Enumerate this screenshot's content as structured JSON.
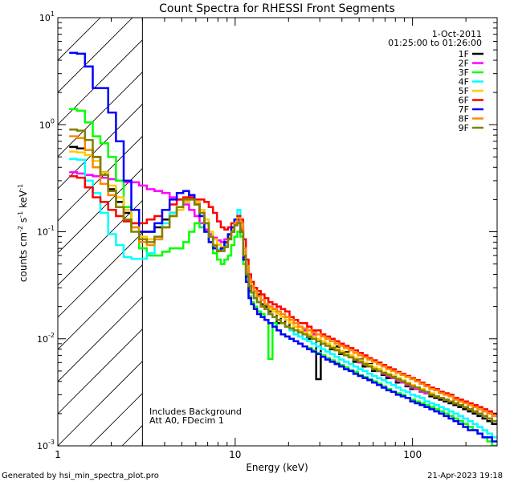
{
  "chart_data": {
    "type": "line",
    "title": "Count Spectra for RHESSI Front Segments",
    "xlabel": "Energy (keV)",
    "ylabel_parts": {
      "base": "counts cm",
      "exp1": "-2",
      "mid": " s",
      "exp2": "-1",
      "tail": " keV",
      "exp3": "-1"
    },
    "xscale": "log",
    "yscale": "log",
    "xlim": [
      1.0,
      300.0
    ],
    "ylim": [
      0.001,
      10.0
    ],
    "x_ticks": [
      {
        "value": 1,
        "label": "1"
      },
      {
        "value": 10,
        "label": "10"
      },
      {
        "value": 100,
        "label": "100"
      }
    ],
    "y_ticks": [
      {
        "value": 0.001,
        "base": "10",
        "exp": "-3"
      },
      {
        "value": 0.01,
        "base": "10",
        "exp": "-2"
      },
      {
        "value": 0.1,
        "base": "10",
        "exp": "-1"
      },
      {
        "value": 1,
        "base": "10",
        "exp": "0"
      },
      {
        "value": 10,
        "base": "10",
        "exp": "1"
      }
    ],
    "shaded_region": {
      "x_from": 1.0,
      "x_to": 3.0,
      "style": "diagonal-hatch"
    },
    "legend_header": [
      "1-Oct-2011",
      "01:25:00 to 01:26:00"
    ],
    "legend_position": "top-right",
    "annotations": [
      "Includes Background",
      "Att A0, FDecim 1"
    ],
    "footer_left": "Generated by hsi_min_spectra_plot.pro",
    "footer_right": "21-Apr-2023 19:18",
    "bins": [
      1.22,
      1.35,
      1.5,
      1.65,
      1.83,
      2.02,
      2.24,
      2.47,
      2.73,
      3.02,
      3.34,
      3.69,
      4.07,
      4.48,
      4.9,
      5.3,
      5.7,
      6.1,
      6.5,
      6.9,
      7.3,
      7.7,
      8.1,
      8.5,
      8.9,
      9.3,
      9.7,
      10.1,
      10.5,
      10.9,
      11.3,
      11.7,
      12.1,
      12.5,
      13.0,
      13.6,
      14.3,
      15.0,
      15.8,
      16.7,
      17.6,
      18.6,
      19.7,
      20.8,
      22.0,
      23.3,
      24.7,
      26.2,
      27.8,
      29.5,
      31.3,
      33.2,
      35.3,
      37.5,
      39.8,
      42.3,
      45.0,
      47.8,
      50.8,
      54.0,
      57.4,
      61.0,
      64.9,
      69.0,
      73.4,
      78.1,
      83.1,
      88.4,
      94.1,
      100.1,
      106.5,
      113.3,
      120.6,
      128.4,
      136.7,
      145.5,
      154.9,
      164.9,
      175.5,
      186.8,
      198.9,
      211.8,
      225.5,
      240.1,
      255.7,
      272.3,
      290.0
    ],
    "series": [
      {
        "name": "1F",
        "color": "#000000",
        "values": [
          0.62,
          0.6,
          0.58,
          0.5,
          0.36,
          0.25,
          0.19,
          0.15,
          0.12,
          0.1,
          0.1,
          0.11,
          0.13,
          0.15,
          0.16,
          0.19,
          0.22,
          0.19,
          0.15,
          0.12,
          0.09,
          0.074,
          0.066,
          0.068,
          0.075,
          0.086,
          0.1,
          0.12,
          0.13,
          0.11,
          0.058,
          0.038,
          0.028,
          0.03,
          0.024,
          0.026,
          0.021,
          0.02,
          0.018,
          0.019,
          0.014,
          0.016,
          0.013,
          0.014,
          0.011,
          0.012,
          0.012,
          0.01,
          0.011,
          0.0042,
          0.0095,
          0.009,
          0.008,
          0.0085,
          0.0072,
          0.0075,
          0.0068,
          0.0061,
          0.0064,
          0.0055,
          0.0058,
          0.005,
          0.0052,
          0.0046,
          0.0043,
          0.0045,
          0.0039,
          0.0041,
          0.0036,
          0.0034,
          0.0035,
          0.0032,
          0.0031,
          0.0029,
          0.0028,
          0.0027,
          0.0026,
          0.0025,
          0.0024,
          0.0023,
          0.0022,
          0.0021,
          0.002,
          0.0019,
          0.0018,
          0.0017,
          0.0016
        ]
      },
      {
        "name": "2F",
        "color": "#ff00ff",
        "values": [
          0.36,
          0.35,
          0.34,
          0.33,
          0.32,
          0.31,
          0.3,
          0.29,
          0.29,
          0.27,
          0.25,
          0.24,
          0.23,
          0.21,
          0.2,
          0.18,
          0.16,
          0.14,
          0.12,
          0.105,
          0.095,
          0.088,
          0.083,
          0.08,
          0.085,
          0.092,
          0.1,
          0.115,
          0.125,
          0.105,
          0.065,
          0.045,
          0.034,
          0.03,
          0.027,
          0.025,
          0.023,
          0.021,
          0.02,
          0.019,
          0.017,
          0.016,
          0.015,
          0.014,
          0.013,
          0.012,
          0.012,
          0.011,
          0.011,
          0.01,
          0.0095,
          0.009,
          0.0085,
          0.008,
          0.0075,
          0.0072,
          0.0068,
          0.0064,
          0.006,
          0.0058,
          0.0055,
          0.0052,
          0.005,
          0.0047,
          0.0045,
          0.0043,
          0.0041,
          0.0039,
          0.0037,
          0.0035,
          0.0034,
          0.0032,
          0.0031,
          0.003,
          0.0029,
          0.0028,
          0.0027,
          0.0026,
          0.0025,
          0.0024,
          0.0023,
          0.0022,
          0.0021,
          0.002,
          0.0019,
          0.0018,
          0.0017
        ]
      },
      {
        "name": "3F",
        "color": "#00ff00",
        "values": [
          1.4,
          1.35,
          1.05,
          0.78,
          0.67,
          0.5,
          0.3,
          0.17,
          0.11,
          0.07,
          0.06,
          0.06,
          0.065,
          0.07,
          0.07,
          0.08,
          0.1,
          0.12,
          0.11,
          0.1,
          0.08,
          0.063,
          0.055,
          0.05,
          0.055,
          0.06,
          0.075,
          0.09,
          0.1,
          0.09,
          0.05,
          0.034,
          0.025,
          0.022,
          0.02,
          0.018,
          0.017,
          0.015,
          0.0065,
          0.014,
          0.012,
          0.011,
          0.0105,
          0.01,
          0.0095,
          0.009,
          0.0085,
          0.0082,
          0.0078,
          0.0074,
          0.007,
          0.0066,
          0.0063,
          0.006,
          0.0057,
          0.0054,
          0.0051,
          0.0049,
          0.0046,
          0.0044,
          0.0042,
          0.004,
          0.0038,
          0.0036,
          0.0034,
          0.0032,
          0.0031,
          0.003,
          0.0028,
          0.0027,
          0.0026,
          0.0025,
          0.0024,
          0.0023,
          0.0022,
          0.0021,
          0.002,
          0.0019,
          0.0018,
          0.0017,
          0.0016,
          0.0015,
          0.0014,
          0.0013,
          0.0012,
          0.0011,
          0.001
        ]
      },
      {
        "name": "4F",
        "color": "#00ffff",
        "values": [
          0.48,
          0.47,
          0.3,
          0.23,
          0.15,
          0.095,
          0.075,
          0.058,
          0.056,
          0.056,
          0.063,
          0.085,
          0.12,
          0.15,
          0.17,
          0.2,
          0.21,
          0.19,
          0.16,
          0.12,
          0.09,
          0.075,
          0.068,
          0.068,
          0.075,
          0.09,
          0.105,
          0.13,
          0.16,
          0.12,
          0.065,
          0.042,
          0.031,
          0.027,
          0.024,
          0.022,
          0.02,
          0.019,
          0.017,
          0.016,
          0.015,
          0.014,
          0.013,
          0.012,
          0.011,
          0.0105,
          0.01,
          0.0095,
          0.009,
          0.0085,
          0.008,
          0.0076,
          0.0072,
          0.0068,
          0.0064,
          0.0061,
          0.0058,
          0.0055,
          0.0052,
          0.005,
          0.0047,
          0.0045,
          0.0043,
          0.0041,
          0.0039,
          0.0037,
          0.0035,
          0.0033,
          0.0032,
          0.003,
          0.0029,
          0.0028,
          0.0026,
          0.0025,
          0.0024,
          0.0023,
          0.0022,
          0.0021,
          0.002,
          0.0019,
          0.0018,
          0.0017,
          0.0016,
          0.0015,
          0.0014,
          0.0013,
          0.0012
        ]
      },
      {
        "name": "5F",
        "color": "#ffcc00",
        "values": [
          0.56,
          0.55,
          0.52,
          0.46,
          0.36,
          0.27,
          0.21,
          0.16,
          0.12,
          0.09,
          0.085,
          0.09,
          0.11,
          0.14,
          0.16,
          0.19,
          0.21,
          0.19,
          0.16,
          0.13,
          0.1,
          0.085,
          0.076,
          0.072,
          0.078,
          0.09,
          0.105,
          0.12,
          0.13,
          0.11,
          0.065,
          0.045,
          0.034,
          0.03,
          0.027,
          0.025,
          0.023,
          0.021,
          0.019,
          0.018,
          0.017,
          0.016,
          0.015,
          0.014,
          0.013,
          0.012,
          0.0115,
          0.011,
          0.0105,
          0.01,
          0.0095,
          0.009,
          0.0085,
          0.0081,
          0.0077,
          0.0073,
          0.007,
          0.0066,
          0.0063,
          0.006,
          0.0057,
          0.0054,
          0.0052,
          0.0049,
          0.0047,
          0.0045,
          0.0043,
          0.0041,
          0.0039,
          0.0037,
          0.0035,
          0.0034,
          0.0032,
          0.0031,
          0.0029,
          0.0028,
          0.0027,
          0.0026,
          0.0025,
          0.0024,
          0.0023,
          0.0022,
          0.0021,
          0.002,
          0.0019,
          0.0018,
          0.0017
        ]
      },
      {
        "name": "6F",
        "color": "#ff0000",
        "values": [
          0.33,
          0.32,
          0.26,
          0.21,
          0.19,
          0.16,
          0.14,
          0.125,
          0.12,
          0.12,
          0.13,
          0.14,
          0.16,
          0.18,
          0.2,
          0.21,
          0.21,
          0.2,
          0.2,
          0.19,
          0.17,
          0.15,
          0.125,
          0.11,
          0.105,
          0.11,
          0.12,
          0.13,
          0.14,
          0.13,
          0.085,
          0.055,
          0.04,
          0.034,
          0.03,
          0.028,
          0.026,
          0.024,
          0.022,
          0.021,
          0.02,
          0.019,
          0.018,
          0.016,
          0.015,
          0.014,
          0.014,
          0.013,
          0.012,
          0.012,
          0.011,
          0.0105,
          0.01,
          0.0095,
          0.009,
          0.0086,
          0.0082,
          0.0078,
          0.0074,
          0.007,
          0.0066,
          0.0063,
          0.006,
          0.0057,
          0.0054,
          0.0052,
          0.0049,
          0.0047,
          0.0045,
          0.0043,
          0.0041,
          0.0039,
          0.0037,
          0.0035,
          0.0034,
          0.0032,
          0.0031,
          0.003,
          0.0028,
          0.0027,
          0.0026,
          0.0025,
          0.0024,
          0.0023,
          0.0022,
          0.0021,
          0.002
        ]
      },
      {
        "name": "7F",
        "color": "#0000ff",
        "values": [
          4.7,
          4.6,
          3.5,
          2.2,
          2.2,
          1.3,
          0.7,
          0.3,
          0.16,
          0.1,
          0.1,
          0.12,
          0.16,
          0.2,
          0.23,
          0.24,
          0.22,
          0.18,
          0.14,
          0.1,
          0.08,
          0.07,
          0.066,
          0.07,
          0.08,
          0.095,
          0.11,
          0.13,
          0.13,
          0.1,
          0.055,
          0.034,
          0.024,
          0.021,
          0.019,
          0.017,
          0.016,
          0.015,
          0.014,
          0.013,
          0.012,
          0.011,
          0.0105,
          0.01,
          0.0095,
          0.009,
          0.0085,
          0.008,
          0.0076,
          0.0072,
          0.0068,
          0.0064,
          0.0061,
          0.0058,
          0.0055,
          0.0052,
          0.005,
          0.0047,
          0.0045,
          0.0043,
          0.0041,
          0.0039,
          0.0037,
          0.0035,
          0.0033,
          0.0032,
          0.003,
          0.0029,
          0.0028,
          0.0026,
          0.0025,
          0.0024,
          0.0023,
          0.0022,
          0.0021,
          0.002,
          0.0019,
          0.0018,
          0.0017,
          0.0016,
          0.0015,
          0.0014,
          0.0014,
          0.0013,
          0.0012,
          0.0012,
          0.0011
        ]
      },
      {
        "name": "8F",
        "color": "#ff8800",
        "values": [
          0.78,
          0.75,
          0.58,
          0.4,
          0.28,
          0.22,
          0.17,
          0.13,
          0.11,
          0.08,
          0.075,
          0.085,
          0.11,
          0.14,
          0.17,
          0.2,
          0.2,
          0.18,
          0.15,
          0.12,
          0.09,
          0.075,
          0.066,
          0.066,
          0.072,
          0.085,
          0.1,
          0.12,
          0.135,
          0.12,
          0.07,
          0.048,
          0.036,
          0.031,
          0.028,
          0.025,
          0.023,
          0.021,
          0.02,
          0.019,
          0.018,
          0.017,
          0.016,
          0.015,
          0.014,
          0.013,
          0.0125,
          0.012,
          0.0115,
          0.011,
          0.0105,
          0.01,
          0.0095,
          0.009,
          0.0086,
          0.0082,
          0.0078,
          0.0074,
          0.007,
          0.0067,
          0.0064,
          0.0061,
          0.0058,
          0.0055,
          0.0052,
          0.005,
          0.0048,
          0.0046,
          0.0044,
          0.0042,
          0.004,
          0.0038,
          0.0036,
          0.0034,
          0.0033,
          0.0031,
          0.003,
          0.0029,
          0.0027,
          0.0026,
          0.0025,
          0.0024,
          0.0023,
          0.0022,
          0.0021,
          0.002,
          0.0019
        ]
      },
      {
        "name": "9F",
        "color": "#808000",
        "values": [
          0.9,
          0.88,
          0.72,
          0.5,
          0.34,
          0.24,
          0.17,
          0.13,
          0.1,
          0.085,
          0.08,
          0.09,
          0.11,
          0.14,
          0.17,
          0.2,
          0.2,
          0.18,
          0.15,
          0.12,
          0.09,
          0.074,
          0.066,
          0.066,
          0.072,
          0.085,
          0.1,
          0.115,
          0.12,
          0.1,
          0.06,
          0.04,
          0.031,
          0.027,
          0.024,
          0.022,
          0.02,
          0.019,
          0.017,
          0.016,
          0.015,
          0.014,
          0.013,
          0.0125,
          0.012,
          0.0115,
          0.011,
          0.0105,
          0.01,
          0.0095,
          0.009,
          0.0086,
          0.0082,
          0.0078,
          0.0074,
          0.007,
          0.0067,
          0.0064,
          0.0061,
          0.0058,
          0.0055,
          0.0052,
          0.005,
          0.0048,
          0.0046,
          0.0044,
          0.0042,
          0.004,
          0.0038,
          0.0036,
          0.0035,
          0.0033,
          0.0032,
          0.003,
          0.0029,
          0.0028,
          0.0027,
          0.0026,
          0.0025,
          0.0024,
          0.0023,
          0.0022,
          0.0021,
          0.002,
          0.0019,
          0.0018,
          0.0017
        ]
      }
    ]
  }
}
